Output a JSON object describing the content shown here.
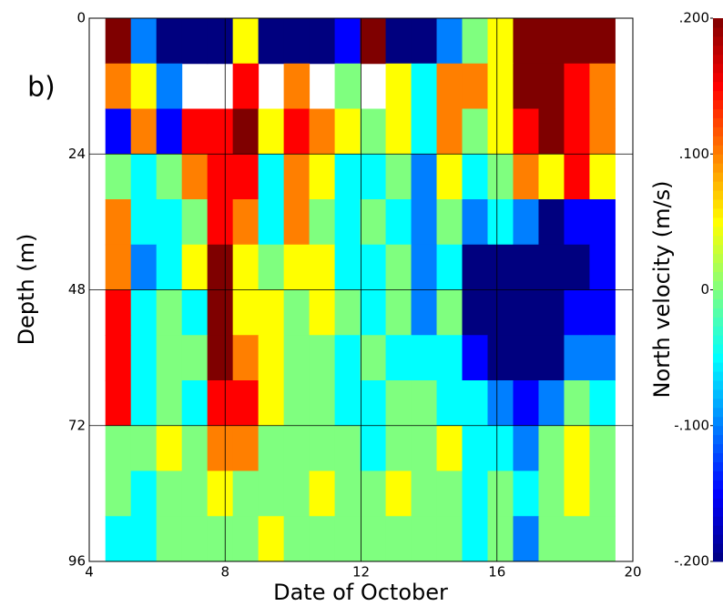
{
  "chart_data": {
    "type": "heatmap",
    "panel_label": "b)",
    "xlabel": "Date of October",
    "ylabel": "Depth (m)",
    "colorbar_label": "North velocity (m/s)",
    "xlim": [
      4,
      20
    ],
    "xticks": [
      4,
      8,
      12,
      16,
      20
    ],
    "ylim": [
      96,
      0
    ],
    "yticks": [
      0,
      24,
      48,
      72,
      96
    ],
    "zlim": [
      -0.2,
      0.2
    ],
    "zticks": [
      {
        "value": 0.2,
        "label": ".200"
      },
      {
        "value": 0.1,
        "label": ".100"
      },
      {
        "value": 0,
        "label": "0"
      },
      {
        "value": -0.1,
        "label": "-.100"
      },
      {
        "value": -0.2,
        "label": "-.200"
      }
    ],
    "colormap": [
      "#00007f",
      "#0000ff",
      "#007fff",
      "#00ffff",
      "#7fff7f",
      "#ffff00",
      "#ff7f00",
      "#ff0000",
      "#7f0000"
    ],
    "grid": true,
    "x": [
      4.85,
      5.6,
      6.35,
      7.1,
      7.85,
      8.6,
      9.35,
      10.1,
      10.85,
      11.6,
      12.35,
      13.1,
      13.85,
      14.6,
      15.35,
      16.1,
      16.85,
      17.6,
      18.35,
      19.1
    ],
    "y": [
      4,
      12,
      20,
      28,
      36,
      44,
      52,
      60,
      68,
      76,
      84,
      92
    ],
    "values": [
      [
        0.2,
        -0.1,
        -0.2,
        -0.2,
        -0.2,
        0.05,
        -0.2,
        -0.2,
        -0.2,
        -0.15,
        0.2,
        -0.2,
        -0.2,
        -0.1,
        0,
        0.05,
        0.2,
        0.2,
        0.2,
        0.2
      ],
      [
        0.1,
        0.05,
        -0.1,
        null,
        null,
        0.15,
        null,
        0.1,
        null,
        0,
        null,
        0.05,
        -0.05,
        0.1,
        0.1,
        0.05,
        0.2,
        0.2,
        0.15,
        0.1
      ],
      [
        -0.15,
        0.1,
        -0.15,
        0.15,
        0.15,
        0.2,
        0.05,
        0.15,
        0.1,
        0.05,
        0,
        0.05,
        -0.05,
        0.1,
        0,
        0.05,
        0.15,
        0.2,
        0.15,
        0.1
      ],
      [
        0,
        -0.05,
        0,
        0.1,
        0.15,
        0.15,
        -0.05,
        0.1,
        0.05,
        -0.05,
        -0.05,
        0,
        -0.1,
        0.05,
        -0.05,
        0,
        0.1,
        0.05,
        0.15,
        0.05
      ],
      [
        0.1,
        -0.05,
        -0.05,
        0,
        0.15,
        0.1,
        -0.05,
        0.1,
        0,
        -0.05,
        0,
        -0.05,
        -0.1,
        0,
        -0.1,
        -0.05,
        -0.1,
        -0.2,
        -0.15,
        -0.15
      ],
      [
        0.1,
        -0.1,
        -0.05,
        0.05,
        0.2,
        0.05,
        0,
        0.05,
        0.05,
        -0.05,
        -0.05,
        0,
        -0.1,
        -0.05,
        -0.2,
        -0.2,
        -0.2,
        -0.2,
        -0.2,
        -0.15
      ],
      [
        0.15,
        -0.05,
        0,
        -0.05,
        0.2,
        0.05,
        0.05,
        0,
        0.05,
        0,
        -0.05,
        0,
        -0.1,
        0,
        -0.2,
        -0.2,
        -0.2,
        -0.2,
        -0.15,
        -0.15
      ],
      [
        0.15,
        -0.05,
        0,
        0,
        0.2,
        0.1,
        0.05,
        0,
        0,
        -0.05,
        0,
        -0.05,
        -0.05,
        -0.05,
        -0.15,
        -0.2,
        -0.2,
        -0.2,
        -0.1,
        -0.1
      ],
      [
        0.15,
        -0.05,
        0,
        -0.05,
        0.15,
        0.15,
        0.05,
        0,
        0,
        -0.05,
        -0.05,
        0,
        0,
        -0.05,
        -0.05,
        -0.1,
        -0.15,
        -0.1,
        0,
        -0.05
      ],
      [
        0,
        0,
        0.05,
        0,
        0.1,
        0.1,
        0,
        0,
        0,
        0,
        -0.05,
        0,
        0,
        0.05,
        -0.05,
        -0.05,
        -0.1,
        0,
        0.05,
        0
      ],
      [
        0,
        -0.05,
        0,
        0,
        0.05,
        0,
        0,
        0,
        0.05,
        0,
        0,
        0.05,
        0,
        0,
        -0.05,
        0,
        -0.05,
        0,
        0.05,
        0
      ],
      [
        -0.05,
        -0.05,
        0,
        0,
        0,
        0,
        0.05,
        0,
        0,
        0,
        0,
        0,
        0,
        0,
        -0.05,
        0,
        -0.1,
        0,
        0,
        0
      ]
    ]
  }
}
